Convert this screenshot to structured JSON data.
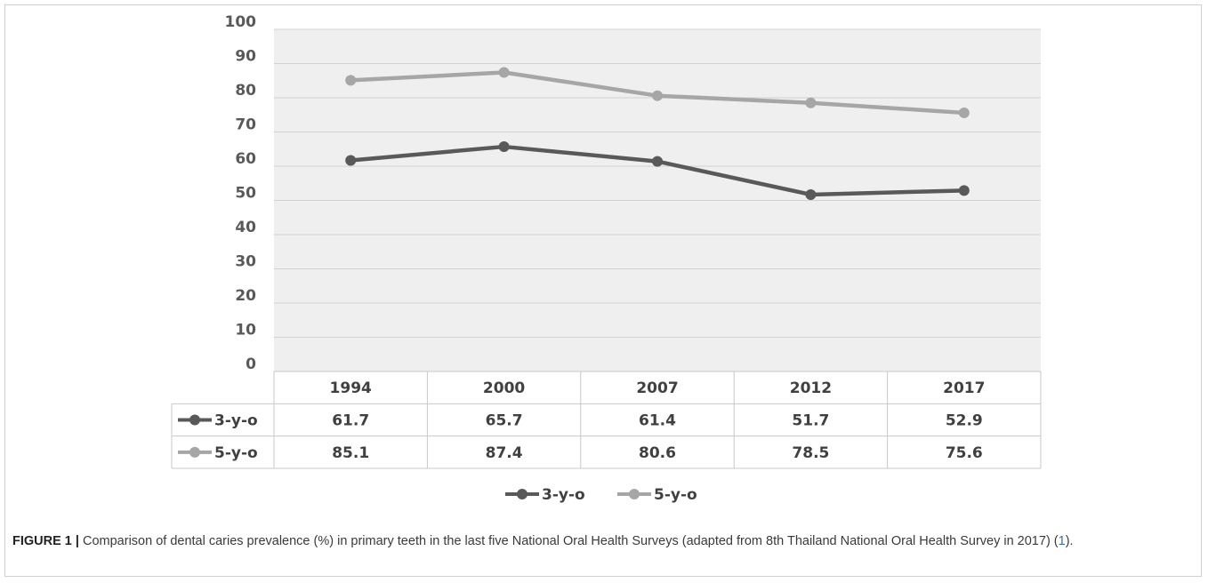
{
  "chart_data": {
    "type": "line",
    "categories": [
      "1994",
      "2000",
      "2007",
      "2012",
      "2017"
    ],
    "series": [
      {
        "name": "3-y-o",
        "values": [
          61.7,
          65.7,
          61.4,
          51.7,
          52.9
        ],
        "color": "#595959"
      },
      {
        "name": "5-y-o",
        "values": [
          85.1,
          87.4,
          80.6,
          78.5,
          75.6
        ],
        "color": "#a6a6a6"
      }
    ],
    "ylim": [
      0,
      100
    ],
    "yticks": [
      "0",
      "10",
      "20",
      "30",
      "40",
      "50",
      "60",
      "70",
      "80",
      "90",
      "100"
    ],
    "grid": true,
    "legend": "bottom",
    "data_table": true,
    "plot_background": "#efefef"
  },
  "caption": {
    "label": "FIGURE 1 |",
    "text": " Comparison of dental caries prevalence (%) in primary teeth in the last five National Oral Health Surveys (adapted from 8th Thailand National Oral Health Survey in 2017) (",
    "ref": "1",
    "end": ")."
  }
}
